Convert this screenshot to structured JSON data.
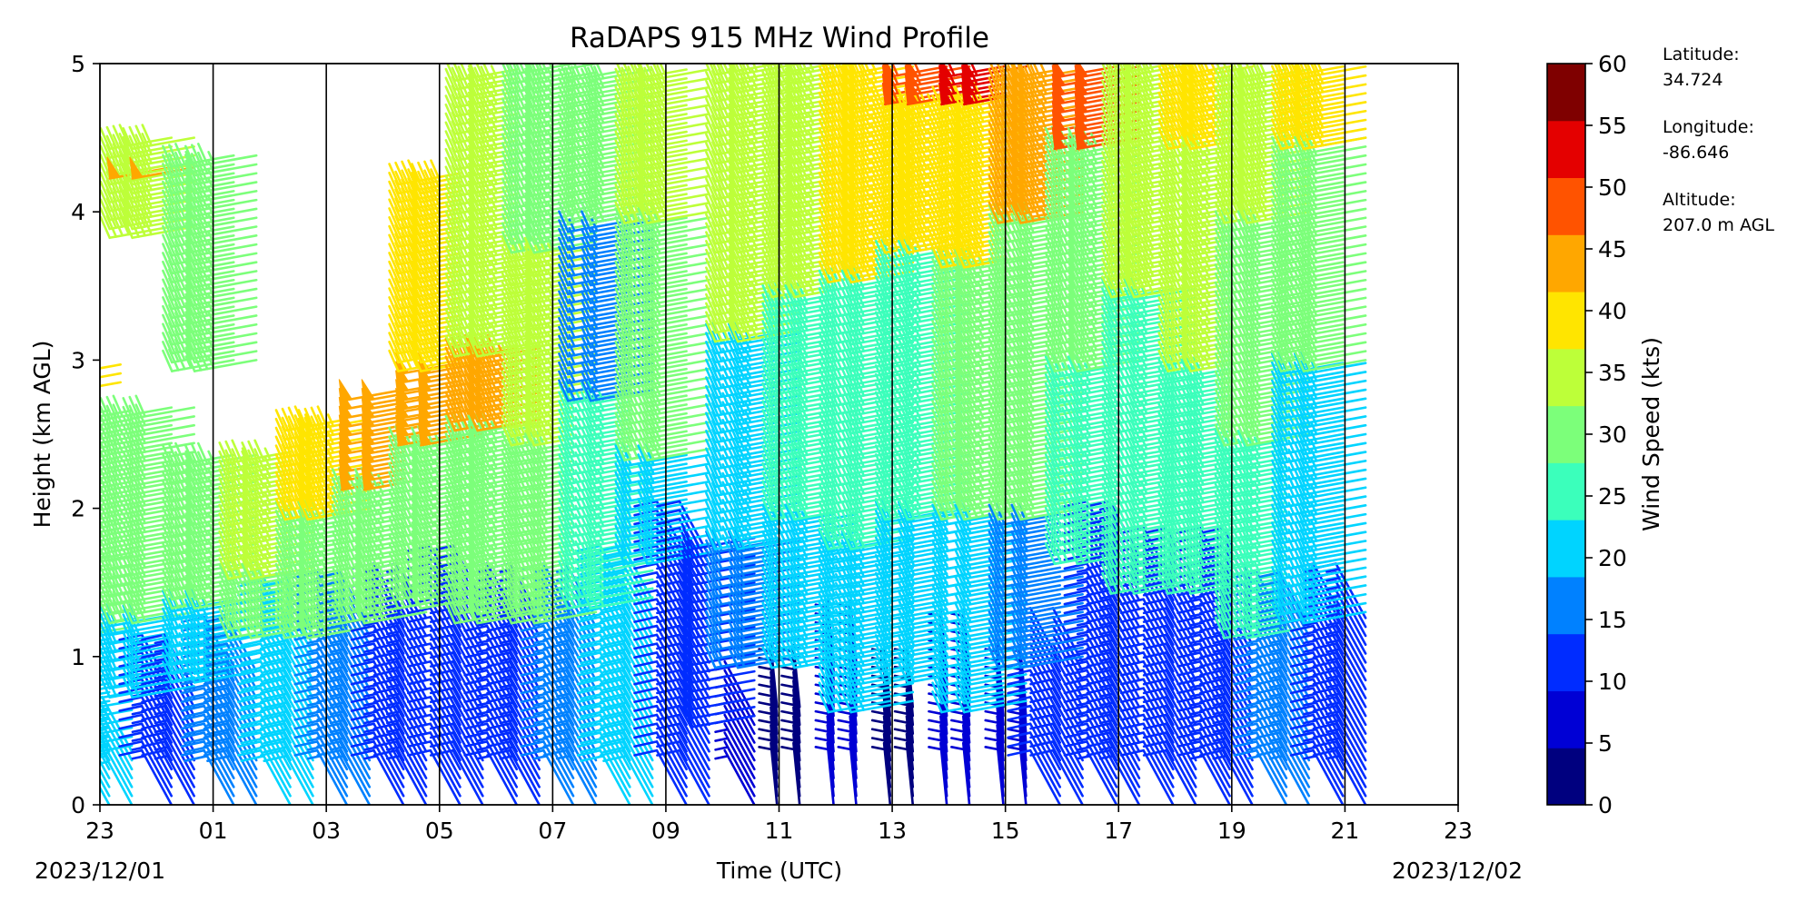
{
  "chart_data": {
    "type": "wind-barb",
    "title": "RaDAPS 915 MHz Wind Profile",
    "xlabel": "Time (UTC)",
    "ylabel": "Height (km AGL)",
    "x_tick_labels": [
      "23",
      "01",
      "03",
      "05",
      "07",
      "09",
      "11",
      "13",
      "15",
      "17",
      "19",
      "21",
      "23"
    ],
    "x_range_hours": [
      0,
      24
    ],
    "date_labels": {
      "start": "2023/12/01",
      "end": "2023/12/02"
    },
    "ylim": [
      0,
      5
    ],
    "y_ticks": [
      0,
      1,
      2,
      3,
      4,
      5
    ],
    "vertical_gridlines_hours": [
      2,
      4,
      6,
      8,
      10,
      12,
      14,
      16,
      18,
      20,
      22
    ],
    "colorbar": {
      "label": "Wind Speed (kts)",
      "ticks": [
        0,
        5,
        10,
        15,
        20,
        25,
        30,
        35,
        40,
        45,
        50,
        55,
        60
      ],
      "colors": [
        "#00007f",
        "#0000d5",
        "#002cff",
        "#0081ff",
        "#00d4ff",
        "#3bffbb",
        "#7cff7a",
        "#bdff39",
        "#ffe500",
        "#ffa700",
        "#ff5300",
        "#e40000",
        "#7f0000"
      ]
    },
    "barb_profiles": [
      {
        "hours": [
          0.1,
          0.5
        ],
        "top": 2.7,
        "segments": [
          [
            0.0,
            0.4,
            23,
            "northwest"
          ],
          [
            0.4,
            1.2,
            22,
            "west"
          ],
          [
            1.2,
            1.7,
            33,
            "west"
          ],
          [
            1.7,
            2.7,
            34,
            "west"
          ]
        ]
      },
      {
        "hours": [
          0.3
        ],
        "top": 3.0,
        "segments": [
          [
            2.85,
            3.0,
            40,
            "west"
          ]
        ]
      },
      {
        "hours": [
          1.2,
          1.6
        ],
        "top": 2.7,
        "segments": [
          [
            0.0,
            0.8,
            14,
            "northwest"
          ],
          [
            0.8,
            1.3,
            20,
            "west"
          ],
          [
            1.3,
            2.7,
            32,
            "west"
          ]
        ]
      },
      {
        "hours": [
          1.2,
          1.6
        ],
        "top": 4.5,
        "segments": [
          [
            3.9,
            4.5,
            38,
            "west"
          ],
          [
            4.3,
            4.35,
            48,
            "west"
          ]
        ]
      },
      {
        "hours": [
          2.3,
          2.7
        ],
        "top": 2.4,
        "segments": [
          [
            0.0,
            0.9,
            18,
            "northwest"
          ],
          [
            0.9,
            1.4,
            24,
            "west"
          ],
          [
            1.4,
            2.4,
            34,
            "west"
          ]
        ]
      },
      {
        "hours": [
          2.3,
          2.7
        ],
        "top": 4.4,
        "segments": [
          [
            3.0,
            4.4,
            33,
            "west"
          ]
        ]
      },
      {
        "hours": [
          3.3,
          3.7
        ],
        "top": 2.4,
        "segments": [
          [
            0.0,
            1.2,
            22,
            "northwest"
          ],
          [
            1.2,
            1.6,
            30,
            "west"
          ],
          [
            1.6,
            2.4,
            36,
            "west"
          ]
        ]
      },
      {
        "hours": [
          4.3,
          4.7
        ],
        "top": 2.6,
        "segments": [
          [
            0.0,
            1.2,
            17,
            "northwest"
          ],
          [
            1.2,
            2.0,
            34,
            "west"
          ],
          [
            2.0,
            2.6,
            44,
            "west"
          ]
        ]
      },
      {
        "hours": [
          5.3,
          5.7
        ],
        "top": 2.8,
        "segments": [
          [
            0.0,
            1.3,
            13,
            "northwest"
          ],
          [
            1.3,
            2.2,
            34,
            "west"
          ],
          [
            2.2,
            2.8,
            48,
            "west"
          ]
        ]
      },
      {
        "hours": [
          6.3,
          6.7
        ],
        "top": 4.3,
        "segments": [
          [
            0.0,
            1.4,
            12,
            "northwest"
          ],
          [
            1.4,
            2.5,
            34,
            "west"
          ],
          [
            2.5,
            3.0,
            48,
            "west"
          ],
          [
            3.0,
            4.3,
            42,
            "west"
          ]
        ]
      },
      {
        "hours": [
          7.3,
          7.7
        ],
        "top": 5.0,
        "segments": [
          [
            0.0,
            1.3,
            14,
            "northwest"
          ],
          [
            1.3,
            2.6,
            34,
            "west"
          ],
          [
            2.6,
            3.1,
            46,
            "west"
          ],
          [
            3.1,
            5.0,
            37,
            "west"
          ]
        ]
      },
      {
        "hours": [
          8.3,
          8.7
        ],
        "top": 5.0,
        "segments": [
          [
            0.0,
            1.3,
            16,
            "northwest"
          ],
          [
            1.3,
            2.5,
            32,
            "west"
          ],
          [
            2.5,
            3.8,
            35,
            "west"
          ],
          [
            3.8,
            5.0,
            34,
            "west"
          ]
        ]
      },
      {
        "hours": [
          9.3,
          9.7
        ],
        "top": 5.0,
        "segments": [
          [
            0.0,
            1.4,
            20,
            "northwest"
          ],
          [
            1.4,
            2.8,
            25,
            "west"
          ],
          [
            2.8,
            4.0,
            17,
            "west"
          ],
          [
            4.0,
            5.0,
            30,
            "west"
          ]
        ]
      },
      {
        "hours": [
          10.3,
          10.7
        ],
        "top": 5.0,
        "segments": [
          [
            0.0,
            1.7,
            12,
            "northwest"
          ],
          [
            1.7,
            2.4,
            22,
            "west"
          ],
          [
            2.4,
            4.0,
            30,
            "west"
          ],
          [
            4.0,
            5.0,
            38,
            "west"
          ]
        ]
      },
      {
        "hours": [
          11.5
        ],
        "top": 1.8,
        "segments": [
          [
            0.0,
            0.6,
            6,
            "northwest"
          ],
          [
            0.6,
            1.8,
            13,
            "west"
          ]
        ]
      },
      {
        "hours": [
          11.9,
          12.3
        ],
        "top": 5.0,
        "segments": [
          [
            0.0,
            0.7,
            4,
            "north"
          ],
          [
            1.0,
            1.8,
            18,
            "west"
          ],
          [
            1.8,
            3.2,
            24,
            "west"
          ],
          [
            3.2,
            5.0,
            36,
            "west"
          ]
        ]
      },
      {
        "hours": [
          12.9,
          13.3
        ],
        "top": 5.0,
        "segments": [
          [
            0.0,
            1.0,
            5,
            "north"
          ],
          [
            1.0,
            2.0,
            23,
            "west"
          ],
          [
            2.0,
            3.5,
            29,
            "west"
          ],
          [
            3.5,
            5.0,
            37,
            "west"
          ]
        ]
      },
      {
        "hours": [
          13.9,
          14.3
        ],
        "top": 5.0,
        "segments": [
          [
            0.0,
            0.7,
            4,
            "north"
          ],
          [
            0.7,
            1.8,
            23,
            "west"
          ],
          [
            1.8,
            3.6,
            29,
            "west"
          ],
          [
            3.6,
            5.0,
            44,
            "west"
          ]
        ]
      },
      {
        "hours": [
          14.9,
          15.3
        ],
        "top": 5.0,
        "segments": [
          [
            0.0,
            0.9,
            6,
            "north"
          ],
          [
            0.9,
            2.0,
            20,
            "west"
          ],
          [
            2.0,
            3.8,
            26,
            "west"
          ],
          [
            3.8,
            4.8,
            43,
            "west"
          ],
          [
            4.8,
            5.0,
            53,
            "west"
          ]
        ]
      },
      {
        "hours": [
          15.9,
          16.3
        ],
        "top": 5.0,
        "segments": [
          [
            0.0,
            0.7,
            7,
            "north"
          ],
          [
            0.7,
            2.0,
            21,
            "west"
          ],
          [
            2.0,
            3.7,
            33,
            "west"
          ],
          [
            3.7,
            4.8,
            40,
            "west"
          ],
          [
            4.8,
            5.0,
            55,
            "west"
          ]
        ]
      },
      {
        "hours": [
          16.9,
          17.3
        ],
        "top": 5.0,
        "segments": [
          [
            0.0,
            1.0,
            11,
            "northwest"
          ],
          [
            1.0,
            2.0,
            18,
            "west"
          ],
          [
            2.0,
            4.0,
            32,
            "west"
          ],
          [
            4.0,
            5.0,
            47,
            "west"
          ]
        ]
      },
      {
        "hours": [
          17.9,
          18.3
        ],
        "top": 5.0,
        "segments": [
          [
            0.0,
            1.7,
            13,
            "northwest"
          ],
          [
            1.7,
            3.0,
            26,
            "west"
          ],
          [
            3.0,
            4.5,
            33,
            "west"
          ],
          [
            4.5,
            5.0,
            50,
            "west"
          ]
        ]
      },
      {
        "hours": [
          18.9,
          19.3
        ],
        "top": 5.0,
        "segments": [
          [
            0.0,
            1.5,
            12,
            "northwest"
          ],
          [
            1.5,
            3.5,
            26,
            "west"
          ],
          [
            3.5,
            5.0,
            38,
            "west"
          ]
        ]
      },
      {
        "hours": [
          19.9,
          20.3
        ],
        "top": 5.0,
        "segments": [
          [
            0.0,
            1.5,
            13,
            "northwest"
          ],
          [
            1.5,
            3.0,
            28,
            "west"
          ],
          [
            3.0,
            4.5,
            37,
            "west"
          ],
          [
            4.5,
            5.0,
            44,
            "west"
          ]
        ]
      },
      {
        "hours": [
          20.9,
          21.3
        ],
        "top": 5.0,
        "segments": [
          [
            0.0,
            1.2,
            16,
            "northwest"
          ],
          [
            1.2,
            2.5,
            26,
            "west"
          ],
          [
            2.5,
            4.0,
            32,
            "west"
          ],
          [
            4.0,
            5.0,
            38,
            "west"
          ]
        ]
      },
      {
        "hours": [
          21.9,
          22.3
        ],
        "top": 5.0,
        "segments": [
          [
            0.0,
            1.3,
            14,
            "northwest"
          ],
          [
            1.3,
            3.0,
            24,
            "west"
          ],
          [
            3.0,
            4.5,
            30,
            "west"
          ],
          [
            4.5,
            5.0,
            40,
            "west"
          ]
        ]
      }
    ]
  },
  "site_info": [
    {
      "label": "Latitude:",
      "value": "34.724"
    },
    {
      "label": "Longitude:",
      "value": "-86.646"
    },
    {
      "label": "Altitude:",
      "value": "207.0 m AGL"
    }
  ]
}
